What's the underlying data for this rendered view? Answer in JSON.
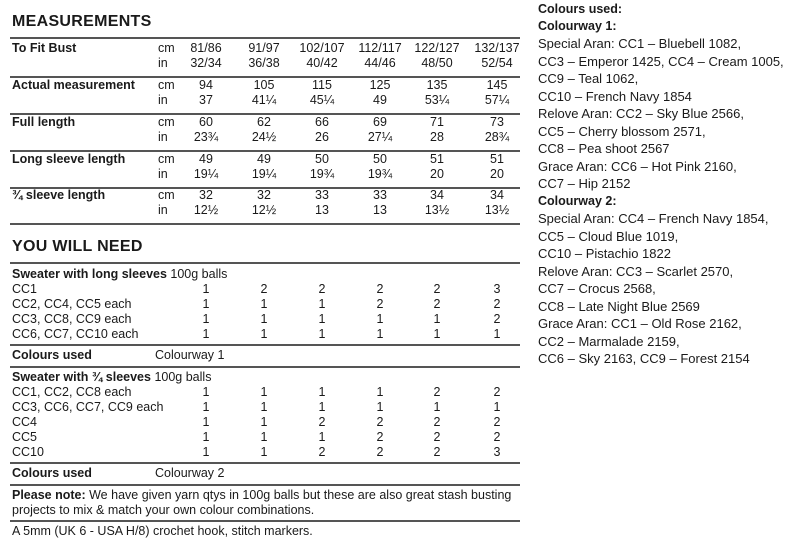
{
  "measurements": {
    "title": "MEASUREMENTS",
    "rows": [
      {
        "label": "To Fit Bust",
        "cm": [
          "81/86",
          "91/97",
          "102/107",
          "112/117",
          "122/127",
          "132/137"
        ],
        "in": [
          "32/34",
          "36/38",
          "40/42",
          "44/46",
          "48/50",
          "52/54"
        ]
      },
      {
        "label": "Actual measurement",
        "cm": [
          "94",
          "105",
          "115",
          "125",
          "135",
          "145"
        ],
        "in": [
          "37",
          "41¼",
          "45¼",
          "49",
          "53¼",
          "57¼"
        ]
      },
      {
        "label": "Full length",
        "cm": [
          "60",
          "62",
          "66",
          "69",
          "71",
          "73"
        ],
        "in": [
          "23¾",
          "24½",
          "26",
          "27¼",
          "28",
          "28¾"
        ]
      },
      {
        "label": "Long sleeve length",
        "cm": [
          "49",
          "49",
          "50",
          "50",
          "51",
          "51"
        ],
        "in": [
          "19¼",
          "19¼",
          "19¾",
          "19¾",
          "20",
          "20"
        ]
      },
      {
        "label": "¾ sleeve length",
        "cm": [
          "32",
          "32",
          "33",
          "33",
          "34",
          "34"
        ],
        "in": [
          "12½",
          "12½",
          "13",
          "13",
          "13½",
          "13½"
        ]
      }
    ],
    "unit_cm": "cm",
    "unit_in": "in"
  },
  "need": {
    "title": "YOU WILL NEED",
    "long": {
      "heading": "Sweater with long sleeves",
      "unit": "100g balls",
      "rows": [
        {
          "label": "CC1",
          "values": [
            "1",
            "2",
            "2",
            "2",
            "2",
            "3"
          ]
        },
        {
          "label": "CC2, CC4, CC5 each",
          "values": [
            "1",
            "1",
            "1",
            "2",
            "2",
            "2"
          ]
        },
        {
          "label": "CC3, CC8, CC9 each",
          "values": [
            "1",
            "1",
            "1",
            "1",
            "1",
            "2"
          ]
        },
        {
          "label": "CC6, CC7, CC10 each",
          "values": [
            "1",
            "1",
            "1",
            "1",
            "1",
            "1"
          ]
        }
      ],
      "colours_label": "Colours used",
      "colours_value": "Colourway 1"
    },
    "threequarter": {
      "heading": "Sweater with ¾ sleeves",
      "unit": "100g balls",
      "rows": [
        {
          "label": "CC1, CC2, CC8 each",
          "values": [
            "1",
            "1",
            "1",
            "1",
            "2",
            "2"
          ]
        },
        {
          "label": "CC3, CC6, CC7, CC9 each",
          "values": [
            "1",
            "1",
            "1",
            "1",
            "1",
            "1"
          ]
        },
        {
          "label": "CC4",
          "values": [
            "1",
            "1",
            "2",
            "2",
            "2",
            "2"
          ]
        },
        {
          "label": "CC5",
          "values": [
            "1",
            "1",
            "1",
            "2",
            "2",
            "2"
          ]
        },
        {
          "label": "CC10",
          "values": [
            "1",
            "1",
            "2",
            "2",
            "2",
            "3"
          ]
        }
      ],
      "colours_label": "Colours used",
      "colours_value": "Colourway 2"
    },
    "note_label": "Please note:",
    "note_line1": " We have given yarn qtys in 100g balls but these are also great stash busting",
    "note_line2": "projects to mix & match your own colour combinations.",
    "hook": "A 5mm (UK 6 - USA H/8) crochet hook, stitch markers."
  },
  "colours": {
    "title": "Colours used:",
    "colourway1": {
      "heading": "Colourway 1:",
      "lines": [
        "Special Aran: CC1 – Bluebell 1082,",
        "CC3 – Emperor 1425, CC4 – Cream 1005,",
        "CC9 – Teal 1062,",
        "CC10 – French Navy 1854",
        "Relove Aran: CC2 – Sky Blue 2566,",
        "CC5 – Cherry blossom 2571,",
        "CC8 – Pea shoot 2567",
        "Grace Aran: CC6 – Hot Pink 2160,",
        "CC7 – Hip 2152"
      ]
    },
    "colourway2": {
      "heading": "Colourway 2:",
      "lines": [
        "Special Aran: CC4 – French Navy 1854,",
        "CC5 – Cloud Blue 1019,",
        "CC10 – Pistachio 1822",
        "Relove Aran: CC3 – Scarlet 2570,",
        "CC7 – Crocus 2568,",
        "CC8 – Late Night Blue 2569",
        "Grace Aran: CC1 – Old Rose 2162,",
        "CC2 – Marmalade 2159,",
        "CC6 – Sky 2163, CC9 – Forest 2154"
      ]
    }
  }
}
